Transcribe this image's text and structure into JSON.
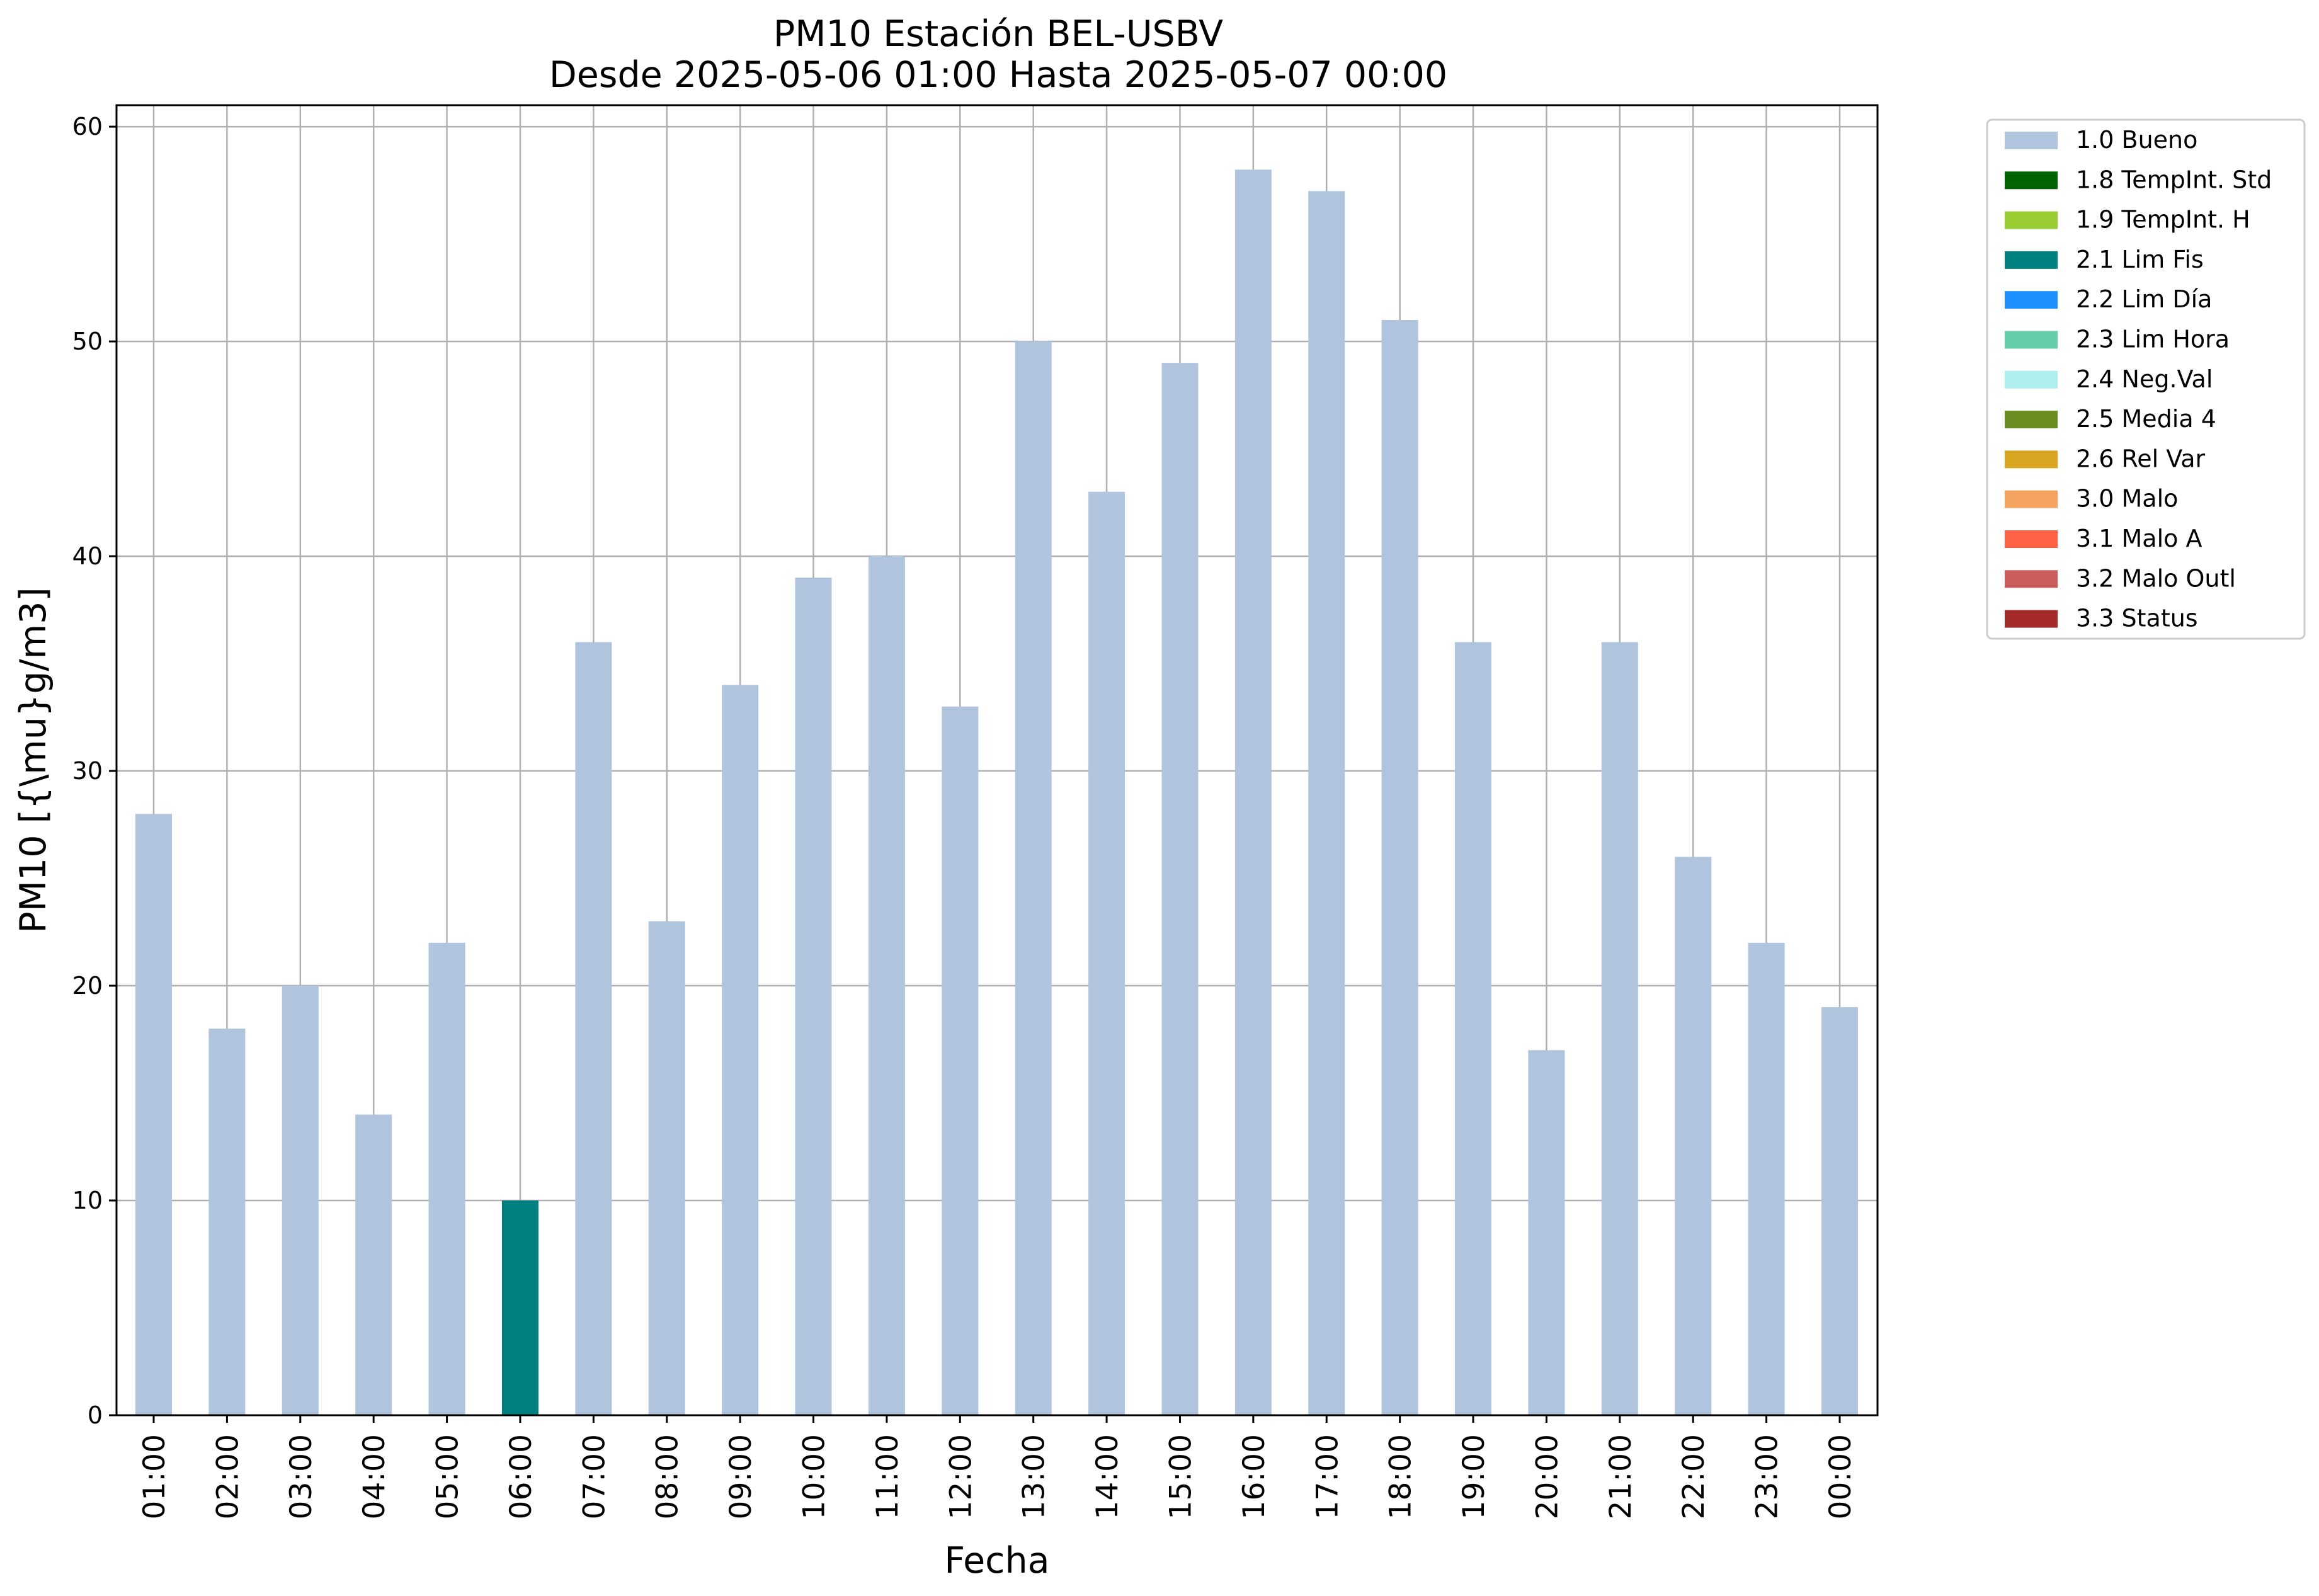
{
  "chart_data": {
    "type": "bar",
    "title": "PM10 Estación BEL-USBV",
    "subtitle": "Desde 2025-05-06 01:00 Hasta 2025-05-07 00:00",
    "xlabel": "Fecha",
    "ylabel": "PM10 [{\\mu}g/m3]",
    "ylim": [
      0,
      61
    ],
    "yticks": [
      "0",
      "10",
      "20",
      "30",
      "40",
      "50",
      "60"
    ],
    "grid": true,
    "legend_position": "outside upper right",
    "categories": [
      "01:00",
      "02:00",
      "03:00",
      "04:00",
      "05:00",
      "06:00",
      "07:00",
      "08:00",
      "09:00",
      "10:00",
      "11:00",
      "12:00",
      "13:00",
      "14:00",
      "15:00",
      "16:00",
      "17:00",
      "18:00",
      "19:00",
      "20:00",
      "21:00",
      "22:00",
      "23:00",
      "00:00"
    ],
    "values": [
      28,
      18,
      20,
      14,
      22,
      10,
      36,
      23,
      34,
      39,
      40,
      33,
      50,
      43,
      49,
      58,
      57,
      51,
      36,
      17,
      36,
      26,
      22,
      19
    ],
    "flags": [
      "1.0 Bueno",
      "1.0 Bueno",
      "1.0 Bueno",
      "1.0 Bueno",
      "1.0 Bueno",
      "2.1 Lim Fis",
      "1.0 Bueno",
      "1.0 Bueno",
      "1.0 Bueno",
      "1.0 Bueno",
      "1.0 Bueno",
      "1.0 Bueno",
      "1.0 Bueno",
      "1.0 Bueno",
      "1.0 Bueno",
      "1.0 Bueno",
      "1.0 Bueno",
      "1.0 Bueno",
      "1.0 Bueno",
      "1.0 Bueno",
      "1.0 Bueno",
      "1.0 Bueno",
      "1.0 Bueno",
      "1.0 Bueno"
    ],
    "legend": [
      {
        "label": "1.0 Bueno",
        "color": "#b0c4de"
      },
      {
        "label": "1.8 TempInt. Std",
        "color": "#006400"
      },
      {
        "label": "1.9 TempInt. H",
        "color": "#9acd32"
      },
      {
        "label": "2.1 Lim Fis",
        "color": "#008080"
      },
      {
        "label": "2.2 Lim Día",
        "color": "#1e90ff"
      },
      {
        "label": "2.3 Lim Hora",
        "color": "#66cdaa"
      },
      {
        "label": "2.4 Neg.Val",
        "color": "#afeeee"
      },
      {
        "label": "2.5 Media 4",
        "color": "#6b8e23"
      },
      {
        "label": "2.6 Rel Var",
        "color": "#daa520"
      },
      {
        "label": "3.0 Malo",
        "color": "#f4a460"
      },
      {
        "label": "3.1 Malo A",
        "color": "#ff6347"
      },
      {
        "label": "3.2 Malo Outl",
        "color": "#cd5c5c"
      },
      {
        "label": "3.3 Status",
        "color": "#a52a2a"
      }
    ]
  }
}
